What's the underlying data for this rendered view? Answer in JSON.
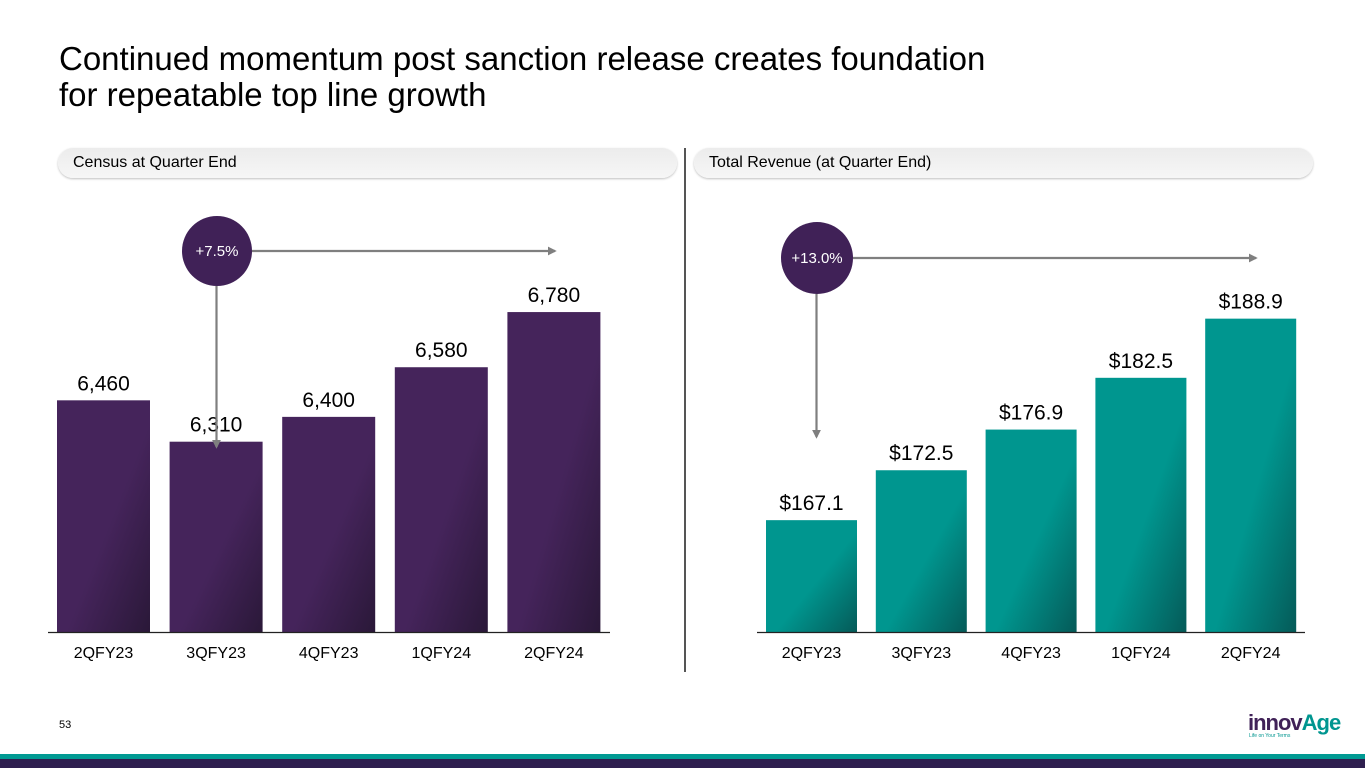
{
  "title": {
    "line1": "Continued momentum post sanction release creates foundation",
    "line2": "for repeatable top line growth"
  },
  "page_number": "53",
  "logo": {
    "text_a": "innov",
    "text_b": "Age",
    "tagline": "Life on Your Terms"
  },
  "colors": {
    "purple": "#45245b",
    "purple_dark": "#2a1838",
    "teal": "#00968f",
    "teal_dark": "#055a58",
    "axis": "#222222",
    "arrow": "#7f7f7f"
  },
  "chart_data": [
    {
      "type": "bar",
      "title": "Census at Quarter End",
      "categories": [
        "2QFY23",
        "3QFY23",
        "4QFY23",
        "1QFY24",
        "2QFY24"
      ],
      "values": [
        6460,
        6310,
        6400,
        6580,
        6780
      ],
      "value_labels": [
        "6,460",
        "6,310",
        "6,400",
        "6,580",
        "6,780"
      ],
      "ylim": [
        5620,
        6860
      ],
      "growth_label": "+7.5%",
      "color": "purple"
    },
    {
      "type": "bar",
      "title": "Total Revenue (at Quarter End)",
      "categories": [
        "2QFY23",
        "3QFY23",
        "4QFY23",
        "1QFY24",
        "2QFY24"
      ],
      "values": [
        167.1,
        172.5,
        176.9,
        182.5,
        188.9
      ],
      "value_labels": [
        "$167.1",
        "$172.5",
        "$176.9",
        "$182.5",
        "$188.9"
      ],
      "ylim": [
        155.0,
        192.0
      ],
      "growth_label": "+13.0%",
      "color": "teal"
    }
  ]
}
